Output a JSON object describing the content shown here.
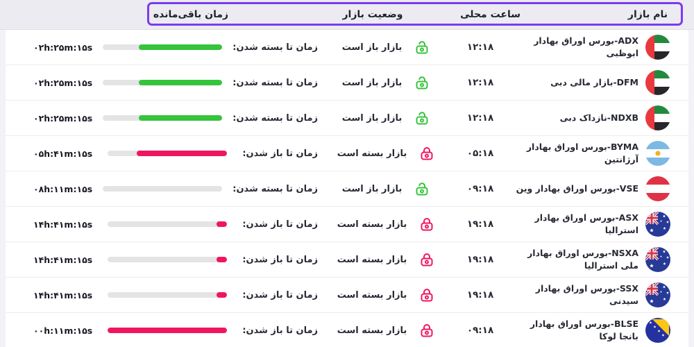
{
  "header": {
    "name": "نام بازار",
    "local_time": "ساعت محلی",
    "status": "وضعیت بازار",
    "remaining": "زمان باقی‌مانده"
  },
  "colors": {
    "highlight_purple": "#7b3af0",
    "open_green": "#35c43c",
    "closed_pink": "#f0165e"
  },
  "rows": [
    {
      "name": "ADX-بورس اوراق بهادار ابوظبی",
      "flag": "uae",
      "local_time": "۱۲:۱۸",
      "status": "بازار باز است",
      "state": "open",
      "countdown_label": "زمان تا بسته شدن:",
      "countdown": "۰۲h:۲۵m:۱۵s",
      "progress_percent": 70
    },
    {
      "name": "DFM-بازار مالی دبی",
      "flag": "uae",
      "local_time": "۱۲:۱۸",
      "status": "بازار باز است",
      "state": "open",
      "countdown_label": "زمان تا بسته شدن:",
      "countdown": "۰۲h:۲۵m:۱۵s",
      "progress_percent": 70
    },
    {
      "name": "NDXB-نازداک دبی",
      "flag": "uae",
      "local_time": "۱۲:۱۸",
      "status": "بازار باز است",
      "state": "open",
      "countdown_label": "زمان تا بسته شدن:",
      "countdown": "۰۲h:۲۵m:۱۵s",
      "progress_percent": 70
    },
    {
      "name": "BYMA-بورس اوراق بهادار آرژانتین",
      "flag": "argentina",
      "local_time": "۰۵:۱۸",
      "status": "بازار بسته است",
      "state": "closed",
      "countdown_label": "زمان تا باز شدن:",
      "countdown": "۰۵h:۴۱m:۱۵s",
      "progress_percent": 76
    },
    {
      "name": "VSE-بورس اوراق بهادار وین",
      "flag": "austria",
      "local_time": "۰۹:۱۸",
      "status": "بازار باز است",
      "state": "open",
      "countdown_label": "زمان تا بسته شدن:",
      "countdown": "۰۸h:۱۱m:۱۵s",
      "progress_percent": 0
    },
    {
      "name": "ASX-بورس اوراق بهادار استرالیا",
      "flag": "australia",
      "local_time": "۱۹:۱۸",
      "status": "بازار بسته است",
      "state": "closed",
      "countdown_label": "زمان تا باز شدن:",
      "countdown": "۱۴h:۴۱m:۱۵s",
      "progress_percent": 9
    },
    {
      "name": "NSXA-بورس اوراق بهادار ملی استرالیا",
      "flag": "australia",
      "local_time": "۱۹:۱۸",
      "status": "بازار بسته است",
      "state": "closed",
      "countdown_label": "زمان تا باز شدن:",
      "countdown": "۱۴h:۴۱m:۱۵s",
      "progress_percent": 9
    },
    {
      "name": "SSX-بورس اوراق بهادار سیدنی",
      "flag": "australia",
      "local_time": "۱۹:۱۸",
      "status": "بازار بسته است",
      "state": "closed",
      "countdown_label": "زمان تا باز شدن:",
      "countdown": "۱۴h:۴۱m:۱۵s",
      "progress_percent": 9
    },
    {
      "name": "BLSE-بورس اوراق بهادار بانجا لوکا",
      "flag": "bosnia",
      "local_time": "۰۹:۱۸",
      "status": "بازار بسته است",
      "state": "closed",
      "countdown_label": "زمان تا باز شدن:",
      "countdown": "۰۰h:۱۱m:۱۵s",
      "progress_percent": 100
    }
  ]
}
